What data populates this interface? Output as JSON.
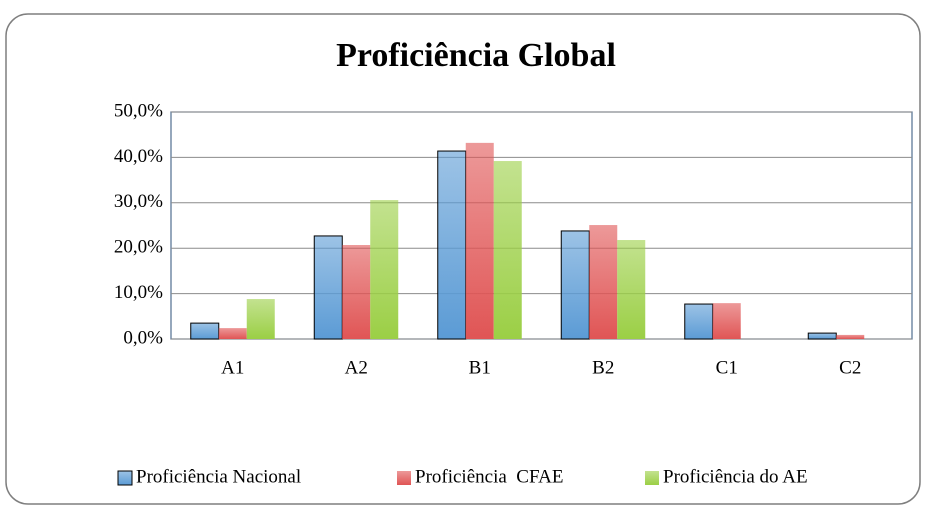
{
  "chart_data": {
    "type": "bar",
    "title": "Proficiência Global",
    "categories": [
      "A1",
      "A2",
      "B1",
      "B2",
      "C1",
      "C2"
    ],
    "series": [
      {
        "name": "Proficiência Nacional",
        "color": "#5b9bd5",
        "values": [
          3.5,
          22.7,
          41.4,
          23.8,
          7.7,
          1.3
        ]
      },
      {
        "name": "Proficiência  CFAE",
        "color": "#e05555",
        "values": [
          2.4,
          20.7,
          43.2,
          25.1,
          7.9,
          0.9
        ]
      },
      {
        "name": "Proficiência do AE",
        "color": "#9bcf45",
        "values": [
          8.8,
          30.6,
          39.2,
          21.8,
          0,
          0
        ]
      }
    ],
    "ylim": [
      0,
      50
    ],
    "yticks": [
      {
        "value": 0,
        "label": "0,0%"
      },
      {
        "value": 10,
        "label": "10,0%"
      },
      {
        "value": 20,
        "label": "20,0%"
      },
      {
        "value": 30,
        "label": "30,0%"
      },
      {
        "value": 40,
        "label": "40,0%"
      },
      {
        "value": 50,
        "label": "50,0%"
      }
    ],
    "grid": true,
    "legend": "bottom"
  }
}
